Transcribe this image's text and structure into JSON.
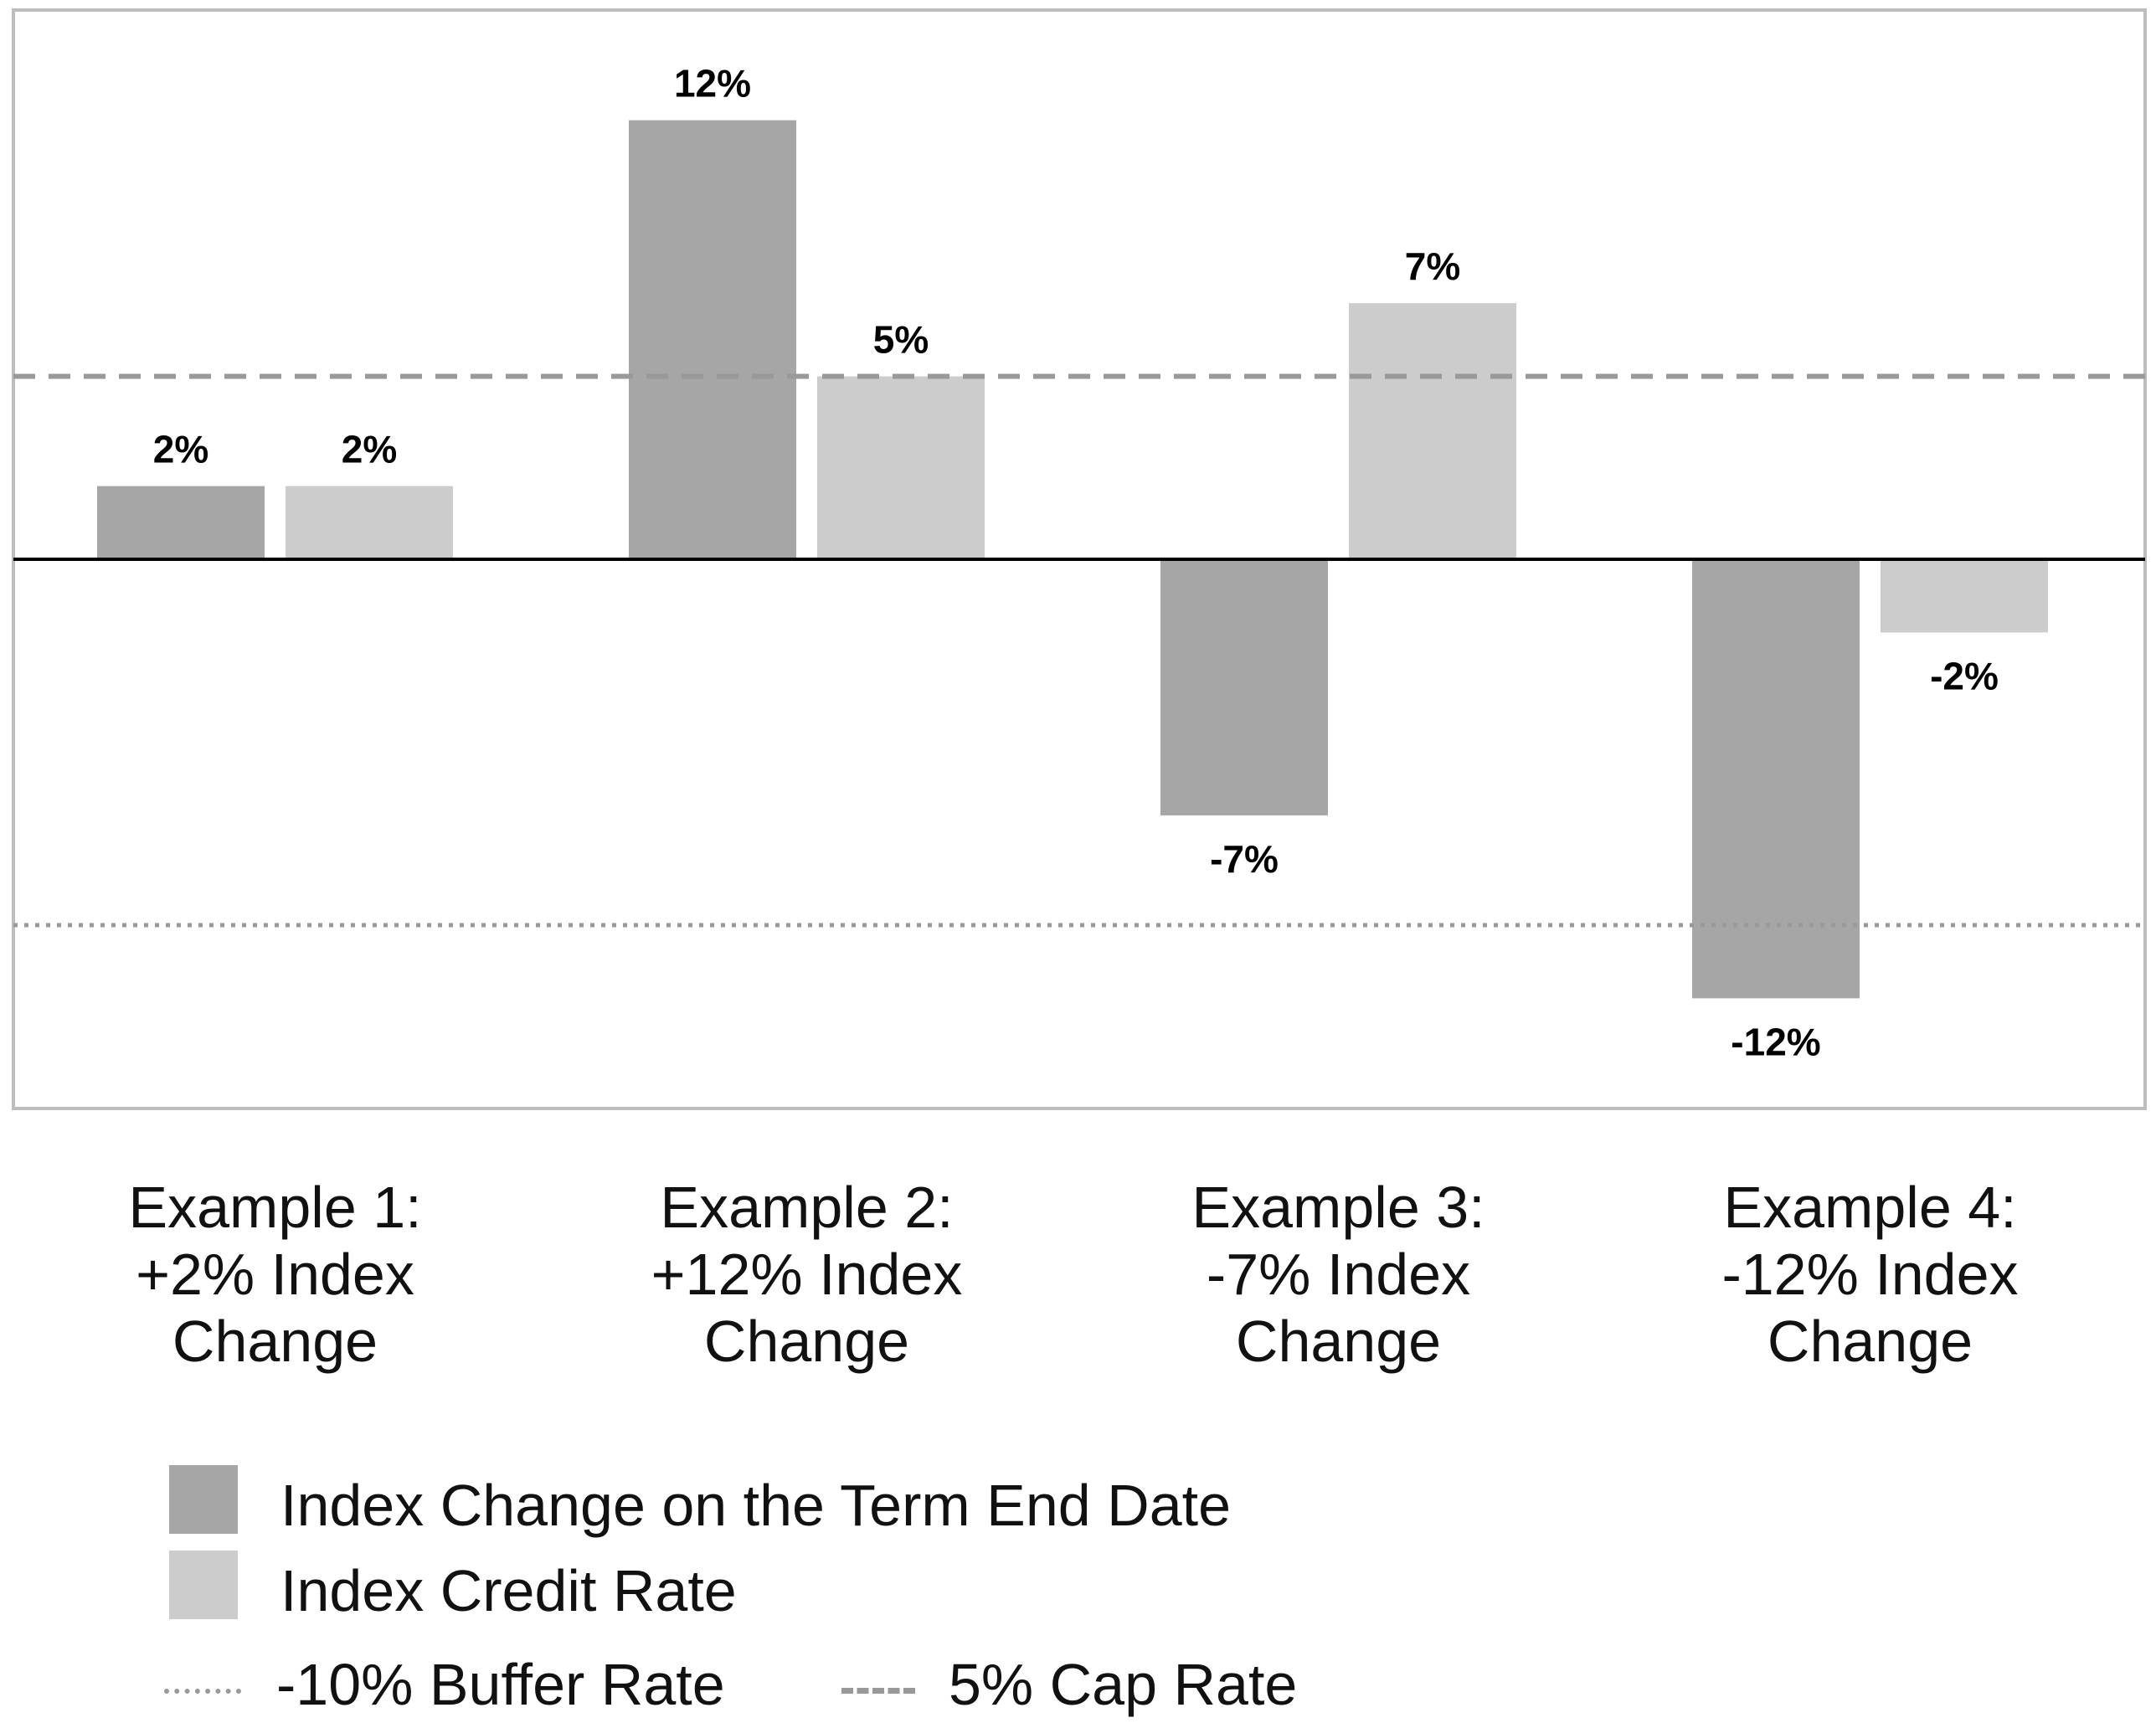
{
  "chart_data": {
    "type": "bar",
    "categories": [
      "Example 1:\n+2% Index\nChange",
      "Example 2:\n+12% Index\nChange",
      "Example 3:\n-7% Index\nChange",
      "Example 4:\n-12% Index\nChange"
    ],
    "series": [
      {
        "name": "Index Change on the Term End Date",
        "color": "#a6a6a6",
        "values": [
          2,
          12,
          -7,
          -12
        ],
        "labels": [
          "2%",
          "12%",
          "-7%",
          "-12%"
        ]
      },
      {
        "name": "Index Credit Rate",
        "color": "#cccccc",
        "values": [
          2,
          5,
          7,
          -2
        ],
        "labels": [
          "2%",
          "5%",
          "7%",
          "-2%"
        ]
      }
    ],
    "reference_lines": [
      {
        "name": "-10% Buffer Rate",
        "value": -10,
        "style": "dotted",
        "color": "#999999"
      },
      {
        "name": "5% Cap Rate",
        "value": 5,
        "style": "dashed",
        "color": "#999999"
      }
    ],
    "ylim": [
      -15,
      15
    ],
    "grid": false,
    "legend_position": "bottom",
    "xlabel": "",
    "ylabel": ""
  },
  "legend": {
    "items": [
      {
        "label": "Index Change on the Term End Date",
        "kind": "swatch",
        "color": "#a6a6a6"
      },
      {
        "label": "Index Credit Rate",
        "kind": "swatch",
        "color": "#cccccc"
      },
      {
        "label": "-10% Buffer Rate",
        "kind": "dotted",
        "color": "#999999"
      },
      {
        "label": "5% Cap Rate",
        "kind": "dashed",
        "color": "#999999"
      }
    ]
  }
}
